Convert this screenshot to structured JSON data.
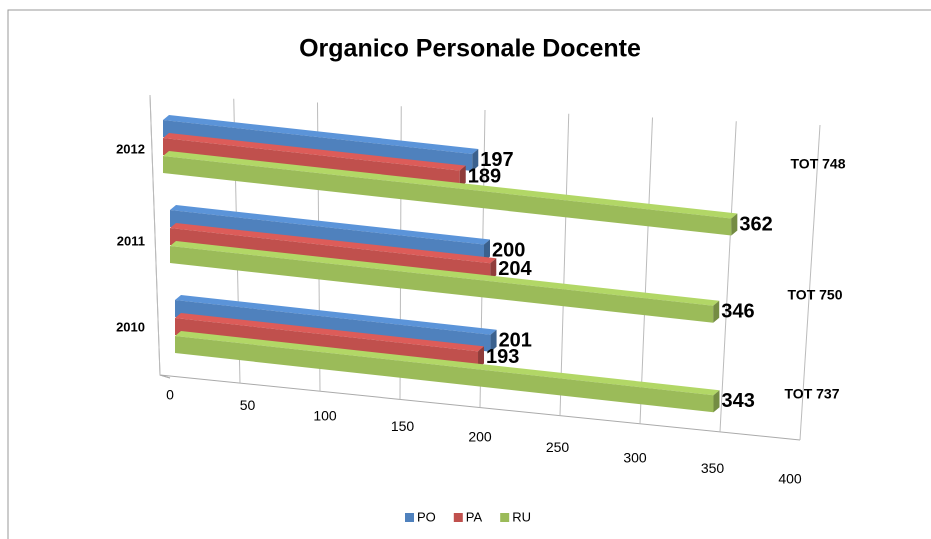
{
  "chart_data": {
    "type": "bar",
    "orientation": "horizontal",
    "title": "Organico Personale Docente",
    "categories": [
      "2010",
      "2011",
      "2012"
    ],
    "series": [
      {
        "name": "PO",
        "color": "#4f81bd",
        "values": [
          201,
          200,
          197
        ]
      },
      {
        "name": "PA",
        "color": "#c0504d",
        "values": [
          193,
          204,
          189
        ]
      },
      {
        "name": "RU",
        "color": "#9bbb59",
        "values": [
          343,
          346,
          362
        ]
      }
    ],
    "annotations": [
      "TOT 737",
      "TOT 750",
      "TOT 748"
    ],
    "xlim": [
      0,
      400
    ],
    "xticks": [
      0,
      50,
      100,
      150,
      200,
      250,
      300,
      350,
      400
    ],
    "grid": true,
    "legend": "bottom"
  }
}
